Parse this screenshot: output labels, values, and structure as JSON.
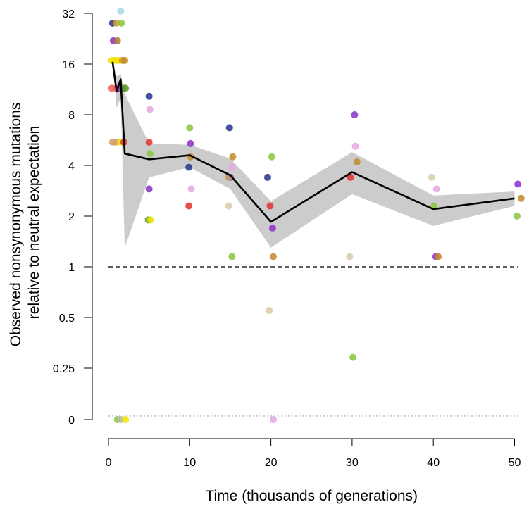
{
  "chart_data": {
    "type": "scatter",
    "title": "",
    "xlabel": "Time (thousands of generations)",
    "ylabel_lines": [
      "Observed nonsynonymous mutations",
      "relative to neutral expectation"
    ],
    "x_ticks": [
      0,
      10,
      20,
      30,
      40,
      50
    ],
    "xlim": [
      0,
      50
    ],
    "y_scale": "log2 (0 plotted at bottom)",
    "y_ticks": [
      {
        "label": "32",
        "value": 32
      },
      {
        "label": "16",
        "value": 16
      },
      {
        "label": "8",
        "value": 8
      },
      {
        "label": "4",
        "value": 4
      },
      {
        "label": "2",
        "value": 2
      },
      {
        "label": "1",
        "value": 1
      },
      {
        "label": "0.5",
        "value": 0.5
      },
      {
        "label": "0.25",
        "value": 0.25
      },
      {
        "label": "0",
        "value": 0
      }
    ],
    "reference_lines": [
      {
        "name": "neutral-expectation",
        "y": 1,
        "style": "dashed",
        "color": "#000000"
      },
      {
        "name": "zero-baseline",
        "y": 0.13,
        "style": "dotted",
        "color": "#bbbbbb"
      }
    ],
    "mean_line": {
      "x": [
        0.5,
        1.0,
        1.5,
        2.0,
        5.0,
        10.0,
        15.0,
        20.0,
        30.0,
        40.0,
        50.0
      ],
      "y": [
        16.5,
        11.0,
        13.0,
        4.7,
        4.35,
        4.6,
        3.5,
        1.85,
        3.65,
        2.2,
        2.55
      ]
    },
    "confidence_band": {
      "x": [
        0.5,
        1.0,
        1.5,
        2.0,
        5.0,
        10.0,
        15.0,
        20.0,
        30.0,
        40.0,
        50.0
      ],
      "upper": [
        16.8,
        13.5,
        14.0,
        10.6,
        5.4,
        5.3,
        4.4,
        2.45,
        4.8,
        2.65,
        2.8
      ],
      "lower": [
        16.2,
        8.8,
        10.0,
        1.3,
        3.4,
        3.9,
        2.9,
        1.3,
        2.7,
        1.75,
        2.3
      ]
    },
    "points": [
      {
        "x": 0.5,
        "y": 28,
        "color": "#27348b"
      },
      {
        "x": 1.0,
        "y": 28,
        "color": "#d4a020"
      },
      {
        "x": 1.5,
        "y": 33,
        "color": "#a8d8e8"
      },
      {
        "x": 1.6,
        "y": 28,
        "color": "#8ac43f"
      },
      {
        "x": 0.6,
        "y": 22,
        "color": "#8b2fc9"
      },
      {
        "x": 1.1,
        "y": 22,
        "color": "#a87d2f"
      },
      {
        "x": 0.4,
        "y": 16.8,
        "color": "#f2e400"
      },
      {
        "x": 0.8,
        "y": 16.8,
        "color": "#f2e400"
      },
      {
        "x": 1.2,
        "y": 16.8,
        "color": "#f2e400"
      },
      {
        "x": 1.7,
        "y": 16.8,
        "color": "#d4a020"
      },
      {
        "x": 2.0,
        "y": 16.8,
        "color": "#c28a2a"
      },
      {
        "x": 0.4,
        "y": 11.5,
        "color": "#f05a5a"
      },
      {
        "x": 0.9,
        "y": 11.5,
        "color": "#f05a5a"
      },
      {
        "x": 1.3,
        "y": 11.5,
        "color": "#8b2fc9"
      },
      {
        "x": 1.8,
        "y": 11.5,
        "color": "#5a9a2f"
      },
      {
        "x": 2.1,
        "y": 11.5,
        "color": "#5a9a2f"
      },
      {
        "x": 0.5,
        "y": 5.5,
        "color": "#d4a060"
      },
      {
        "x": 0.9,
        "y": 5.5,
        "color": "#d4a060"
      },
      {
        "x": 1.5,
        "y": 5.5,
        "color": "#f2e400"
      },
      {
        "x": 1.9,
        "y": 5.5,
        "color": "#e03030"
      },
      {
        "x": 1.1,
        "y": 0,
        "color": "#8ac43f"
      },
      {
        "x": 1.5,
        "y": 0,
        "color": "#bdb89a"
      },
      {
        "x": 2.1,
        "y": 0,
        "color": "#f2e400"
      },
      {
        "x": 5.0,
        "y": 10.3,
        "color": "#27348b"
      },
      {
        "x": 5.1,
        "y": 8.6,
        "color": "#e4a6e0"
      },
      {
        "x": 5.0,
        "y": 5.5,
        "color": "#e03030"
      },
      {
        "x": 5.1,
        "y": 4.7,
        "color": "#8ac43f"
      },
      {
        "x": 5.0,
        "y": 2.9,
        "color": "#8b2fc9"
      },
      {
        "x": 4.9,
        "y": 1.9,
        "color": "#5a9a2f"
      },
      {
        "x": 5.2,
        "y": 1.9,
        "color": "#f2e400"
      },
      {
        "x": 10.0,
        "y": 6.7,
        "color": "#8ac43f"
      },
      {
        "x": 10.1,
        "y": 5.4,
        "color": "#8b2fc9"
      },
      {
        "x": 10.1,
        "y": 4.5,
        "color": "#c28a2a"
      },
      {
        "x": 9.9,
        "y": 3.9,
        "color": "#27348b"
      },
      {
        "x": 10.2,
        "y": 2.9,
        "color": "#e4a6e0"
      },
      {
        "x": 9.9,
        "y": 2.3,
        "color": "#e03030"
      },
      {
        "x": 14.9,
        "y": 6.7,
        "color": "#27348b"
      },
      {
        "x": 15.3,
        "y": 4.5,
        "color": "#c28a2a"
      },
      {
        "x": 15.2,
        "y": 3.9,
        "color": "#e4a6e0"
      },
      {
        "x": 15.0,
        "y": 3.4,
        "color": "#8b2fc9"
      },
      {
        "x": 14.8,
        "y": 3.4,
        "color": "#c0a060"
      },
      {
        "x": 14.8,
        "y": 2.3,
        "color": "#d8cca8"
      },
      {
        "x": 15.2,
        "y": 1.15,
        "color": "#8ac43f"
      },
      {
        "x": 20.1,
        "y": 4.5,
        "color": "#8ac43f"
      },
      {
        "x": 19.6,
        "y": 3.4,
        "color": "#27348b"
      },
      {
        "x": 19.9,
        "y": 2.3,
        "color": "#e03030"
      },
      {
        "x": 20.2,
        "y": 1.7,
        "color": "#8b2fc9"
      },
      {
        "x": 20.3,
        "y": 1.15,
        "color": "#c28a2a"
      },
      {
        "x": 19.8,
        "y": 0.55,
        "color": "#d8cca8"
      },
      {
        "x": 20.3,
        "y": 0,
        "color": "#e4a6e0"
      },
      {
        "x": 30.3,
        "y": 8.0,
        "color": "#8b2fc9"
      },
      {
        "x": 30.4,
        "y": 5.2,
        "color": "#e4a6e0"
      },
      {
        "x": 30.6,
        "y": 4.2,
        "color": "#c28a2a"
      },
      {
        "x": 29.8,
        "y": 3.4,
        "color": "#e03030"
      },
      {
        "x": 29.7,
        "y": 1.15,
        "color": "#d8cca8"
      },
      {
        "x": 30.1,
        "y": 0.29,
        "color": "#8ac43f"
      },
      {
        "x": 39.8,
        "y": 3.4,
        "color": "#d8cca8"
      },
      {
        "x": 40.4,
        "y": 2.9,
        "color": "#e4a6e0"
      },
      {
        "x": 40.1,
        "y": 2.3,
        "color": "#8ac43f"
      },
      {
        "x": 40.3,
        "y": 1.15,
        "color": "#8b2fc9"
      },
      {
        "x": 40.6,
        "y": 1.15,
        "color": "#c28a2a"
      },
      {
        "x": 50.4,
        "y": 3.1,
        "color": "#8b2fc9"
      },
      {
        "x": 50.8,
        "y": 2.55,
        "color": "#c28a2a"
      },
      {
        "x": 50.3,
        "y": 2.0,
        "color": "#8ac43f"
      }
    ]
  }
}
